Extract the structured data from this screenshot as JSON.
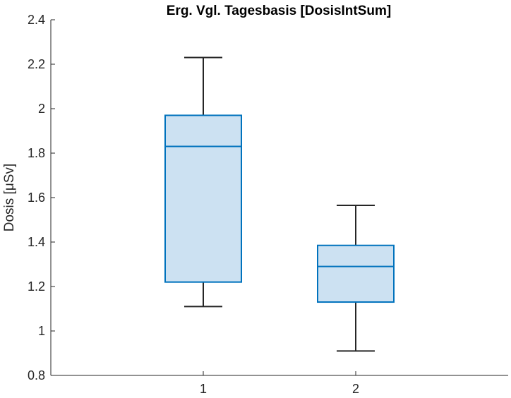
{
  "chart_data": {
    "type": "box",
    "title": "Erg. Vgl. Tagesbasis [DosisIntSum]",
    "ylabel": "Dosis [μSv]",
    "xlabel": "",
    "categories": [
      "1",
      "2"
    ],
    "ylim": [
      0.8,
      2.4
    ],
    "yticks": [
      "0.8",
      "1",
      "1.2",
      "1.4",
      "1.6",
      "1.8",
      "2",
      "2.2",
      "2.4"
    ],
    "grid": false,
    "boxes": [
      {
        "category": "1",
        "min": 1.11,
        "q1": 1.22,
        "median": 1.83,
        "q3": 1.97,
        "max": 2.23
      },
      {
        "category": "2",
        "min": 0.91,
        "q1": 1.13,
        "median": 1.29,
        "q3": 1.385,
        "max": 1.565
      }
    ],
    "colors": {
      "box_fill": "#cce1f2",
      "box_edge": "#0072bd",
      "whisker": "#262626"
    }
  }
}
